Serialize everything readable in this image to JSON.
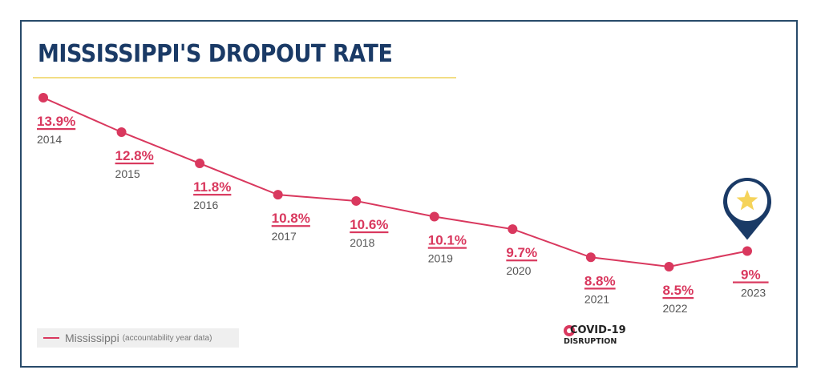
{
  "chart_data": {
    "type": "line",
    "title": "MISSISSIPPI'S DROPOUT RATE",
    "xlabel": "",
    "ylabel": "",
    "grid": false,
    "categories": [
      "2014",
      "2015",
      "2016",
      "2017",
      "2018",
      "2019",
      "2020",
      "2021",
      "2022",
      "2023"
    ],
    "series": [
      {
        "name": "Mississippi",
        "values": [
          13.9,
          12.8,
          11.8,
          10.8,
          10.6,
          10.1,
          9.7,
          8.8,
          8.5,
          9.0
        ],
        "labels": [
          "13.9%",
          "12.8%",
          "11.8%",
          "10.8%",
          "10.6%",
          "10.1%",
          "9.7%",
          "8.8%",
          "8.5%",
          "9%"
        ],
        "color": "#d9385e"
      }
    ],
    "highlight": {
      "category": "2023",
      "icon": "star-map-pin-icon",
      "pin_color": "#1a3a66",
      "star_color": "#f5d35a"
    },
    "legend": {
      "placement": "bottom-left",
      "label": "Mississippi",
      "note": "(accountability year data)"
    },
    "annotations": [
      {
        "near_category": "2021",
        "line1": "COVID-19",
        "line2": "DISRUPTION",
        "icon": "covid-circle-icon"
      }
    ]
  },
  "colors": {
    "title": "#1a3a66",
    "title_rule": "#f2dd84",
    "frame": "#284a6a",
    "series": "#d9385e",
    "year_text": "#555555"
  }
}
